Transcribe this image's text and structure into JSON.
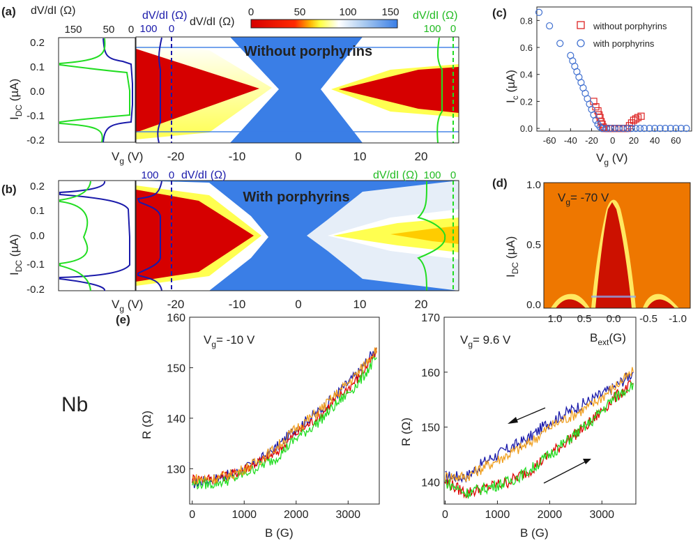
{
  "panels": {
    "a": "(a)",
    "b": "(b)",
    "c": "(c)",
    "d": "(d)",
    "e": "(e)"
  },
  "colors": {
    "red": "#d60000",
    "blue": "#3a7ee6",
    "white": "#f2f2f2",
    "yellow": "#ffff00",
    "trace_blue": "#1a1aaa",
    "trace_green": "#22dd22",
    "trace_red": "#dd0000",
    "trace_orange": "#f0a020",
    "open_red": "#dd2222",
    "open_blue": "#4070d0",
    "map_orange": "#ee7700",
    "map_red": "#cc1100"
  },
  "colorbar": {
    "label": "dV/dI (Ω)",
    "ticks": [
      "0",
      "50",
      "100",
      "150"
    ]
  },
  "panel_a": {
    "title": "Without porphyrins",
    "ylabel": "I",
    "ylabel_sub": "DC",
    "ylabel_unit": " (µA)",
    "yticks": [
      "0.2",
      "0.1",
      "0.0",
      "-0.1",
      "-0.2"
    ],
    "side_label": "dV/dI (Ω)",
    "side_ticks": [
      "150",
      "50",
      "0"
    ],
    "blue_label": "dV/dI (Ω)",
    "blue_ticks": [
      "100",
      "0"
    ],
    "green_label": "dV/dI (Ω)",
    "green_ticks": [
      "100",
      "0"
    ],
    "xlabel": "V",
    "xlabel_sub": "g",
    "xlabel_unit": " (V)",
    "xticks": [
      "-20",
      "-10",
      "0",
      "10",
      "20"
    ]
  },
  "panel_b": {
    "title": "With porphyrins",
    "ylabel": "I",
    "ylabel_sub": "DC",
    "ylabel_unit": " (µA)",
    "yticks": [
      "0.2",
      "0.1",
      "0.0",
      "-0.1",
      "-0.2"
    ],
    "blue_label": "dV/dI (Ω)",
    "blue_ticks": [
      "100",
      "0"
    ],
    "green_label": "dV/dI (Ω)",
    "green_ticks": [
      "100",
      "0"
    ],
    "xlabel": "V",
    "xlabel_sub": "g",
    "xlabel_unit": " (V)",
    "xticks": [
      "-20",
      "-10",
      "0",
      "10",
      "20"
    ]
  },
  "panel_d": {
    "annotation": "V",
    "annotation_sub": "g",
    "annotation_val": "= -70 V",
    "ylabel": "I",
    "ylabel_sub": "DC",
    "ylabel_unit": " (µA)",
    "yticks": [
      "1.0",
      "0.5",
      "0.0"
    ],
    "xlabel": "B",
    "xlabel_sub": "ext",
    "xlabel_unit": "(G)",
    "xticks": [
      "1.0",
      "0.5",
      "0.0",
      "-0.5",
      "-1.0"
    ]
  },
  "nb_label": "Nb",
  "chart_data": [
    {
      "type": "scatter",
      "panel": "c",
      "ylabel": "I",
      "ylabel_sub": "c",
      "ylabel_unit": " (µA)",
      "xlabel": "V",
      "xlabel_sub": "g",
      "xlabel_unit": " (V)",
      "xlim": [
        -72,
        75
      ],
      "ylim": [
        -0.02,
        0.9
      ],
      "xticks": [
        "-60",
        "-40",
        "-20",
        "0",
        "20",
        "40",
        "60"
      ],
      "xtick_values": [
        -60,
        -40,
        -20,
        0,
        20,
        40,
        60
      ],
      "yticks": [
        "0.0",
        "0.2",
        "0.4",
        "0.6",
        "0.8"
      ],
      "ytick_values": [
        0,
        0.2,
        0.4,
        0.6,
        0.8
      ],
      "series": [
        {
          "name": "without porphyrins",
          "marker": "square",
          "points": [
            [
              -18,
              0.2
            ],
            [
              -16,
              0.16
            ],
            [
              -14,
              0.13
            ],
            [
              -13,
              0.1
            ],
            [
              -12,
              0.08
            ],
            [
              -11,
              0.05
            ],
            [
              -10,
              0.03
            ],
            [
              -9,
              0.01
            ],
            [
              -8,
              0
            ],
            [
              -6,
              0
            ],
            [
              -4,
              0
            ],
            [
              -2,
              0
            ],
            [
              0,
              0
            ],
            [
              2,
              0
            ],
            [
              4,
              0
            ],
            [
              6,
              0
            ],
            [
              8,
              0
            ],
            [
              10,
              0
            ],
            [
              12,
              0
            ],
            [
              14,
              0
            ],
            [
              16,
              0.02
            ],
            [
              18,
              0.04
            ],
            [
              20,
              0.06
            ],
            [
              22,
              0.07
            ],
            [
              24,
              0.08
            ],
            [
              27,
              0.09
            ]
          ]
        },
        {
          "name": "with porphyrins",
          "marker": "circle",
          "points": [
            [
              -70,
              0.86
            ],
            [
              -60,
              0.76
            ],
            [
              -50,
              0.63
            ],
            [
              -40,
              0.54
            ],
            [
              -38,
              0.5
            ],
            [
              -36,
              0.46
            ],
            [
              -34,
              0.42
            ],
            [
              -32,
              0.38
            ],
            [
              -30,
              0.34
            ],
            [
              -28,
              0.3
            ],
            [
              -26,
              0.26
            ],
            [
              -24,
              0.22
            ],
            [
              -22,
              0.18
            ],
            [
              -20,
              0.14
            ],
            [
              -18,
              0.1
            ],
            [
              -16,
              0.06
            ],
            [
              -14,
              0.03
            ],
            [
              -12,
              0.01
            ],
            [
              -10,
              0
            ],
            [
              -6,
              0
            ],
            [
              -2,
              0
            ],
            [
              2,
              0
            ],
            [
              6,
              0
            ],
            [
              10,
              0
            ],
            [
              14,
              0
            ],
            [
              18,
              0
            ],
            [
              22,
              0
            ],
            [
              26,
              0
            ],
            [
              30,
              0
            ],
            [
              35,
              0
            ],
            [
              40,
              0
            ],
            [
              45,
              0
            ],
            [
              50,
              0
            ],
            [
              55,
              0
            ],
            [
              60,
              0
            ],
            [
              65,
              0
            ],
            [
              70,
              0
            ]
          ]
        }
      ]
    },
    {
      "type": "line",
      "panel": "e-left",
      "annotation": "V",
      "annotation_sub": "g",
      "annotation_val": "= -10 V",
      "ylabel": "R (Ω)",
      "xlabel": "B (G)",
      "xlim": [
        -50,
        3600
      ],
      "ylim": [
        123,
        160
      ],
      "xticks": [
        "0",
        "1000",
        "2000",
        "3000"
      ],
      "xtick_values": [
        0,
        1000,
        2000,
        3000
      ],
      "yticks": [
        "130",
        "140",
        "150",
        "160"
      ],
      "ytick_values": [
        130,
        140,
        150,
        160
      ],
      "series": [
        {
          "color": "trace_blue",
          "points": [
            [
              0,
              127
            ],
            [
              400,
              128
            ],
            [
              800,
              129
            ],
            [
              1200,
              131
            ],
            [
              1600,
              134
            ],
            [
              2000,
              138
            ],
            [
              2400,
              141
            ],
            [
              2800,
              145
            ],
            [
              3200,
              149
            ],
            [
              3550,
              154
            ]
          ]
        },
        {
          "color": "trace_red",
          "points": [
            [
              0,
              128
            ],
            [
              400,
              128
            ],
            [
              800,
              129
            ],
            [
              1200,
              131
            ],
            [
              1600,
              133
            ],
            [
              2000,
              137
            ],
            [
              2400,
              140
            ],
            [
              2800,
              144
            ],
            [
              3200,
              148
            ],
            [
              3550,
              153
            ]
          ]
        },
        {
          "color": "trace_green",
          "points": [
            [
              0,
              127
            ],
            [
              400,
              127
            ],
            [
              800,
              128
            ],
            [
              1200,
              130
            ],
            [
              1600,
              132
            ],
            [
              2000,
              136
            ],
            [
              2400,
              139
            ],
            [
              2800,
              143
            ],
            [
              3200,
              147
            ],
            [
              3550,
              152
            ]
          ]
        },
        {
          "color": "trace_orange",
          "points": [
            [
              0,
              128
            ],
            [
              400,
              128
            ],
            [
              800,
              129
            ],
            [
              1200,
              131
            ],
            [
              1600,
              134
            ],
            [
              2000,
              138
            ],
            [
              2400,
              141
            ],
            [
              2800,
              145
            ],
            [
              3200,
              149
            ],
            [
              3550,
              154
            ]
          ]
        }
      ]
    },
    {
      "type": "line",
      "panel": "e-right",
      "annotation": "V",
      "annotation_sub": "g",
      "annotation_val": "= 9.6 V",
      "ylabel": "R (Ω)",
      "xlabel": "B (G)",
      "xlim": [
        -20,
        3650
      ],
      "ylim": [
        136,
        170
      ],
      "xticks": [
        "0",
        "1000",
        "2000",
        "3000"
      ],
      "xtick_values": [
        0,
        1000,
        2000,
        3000
      ],
      "yticks": [
        "140",
        "150",
        "160",
        "170"
      ],
      "ytick_values": [
        140,
        150,
        160,
        170
      ],
      "series": [
        {
          "color": "trace_blue",
          "points": [
            [
              0,
              141
            ],
            [
              400,
              141
            ],
            [
              800,
              144
            ],
            [
              1200,
              146
            ],
            [
              1600,
              148
            ],
            [
              2000,
              151
            ],
            [
              2400,
              153
            ],
            [
              2800,
              155
            ],
            [
              3200,
              157
            ],
            [
              3600,
              160
            ]
          ]
        },
        {
          "color": "trace_orange",
          "points": [
            [
              0,
              141
            ],
            [
              400,
              141
            ],
            [
              800,
              143
            ],
            [
              1200,
              145
            ],
            [
              1600,
              147
            ],
            [
              2000,
              150
            ],
            [
              2400,
              152
            ],
            [
              2800,
              154
            ],
            [
              3200,
              157
            ],
            [
              3600,
              160
            ]
          ]
        },
        {
          "color": "trace_red",
          "points": [
            [
              0,
              140
            ],
            [
              400,
              138
            ],
            [
              800,
              139
            ],
            [
              1200,
              140
            ],
            [
              1600,
              142
            ],
            [
              2000,
              145
            ],
            [
              2400,
              148
            ],
            [
              2800,
              151
            ],
            [
              3200,
              155
            ],
            [
              3600,
              158
            ]
          ]
        },
        {
          "color": "trace_green",
          "points": [
            [
              0,
              140
            ],
            [
              400,
              138
            ],
            [
              800,
              139
            ],
            [
              1200,
              140
            ],
            [
              1600,
              142
            ],
            [
              2000,
              145
            ],
            [
              2400,
              148
            ],
            [
              2800,
              151
            ],
            [
              3200,
              155
            ],
            [
              3600,
              158
            ]
          ]
        }
      ]
    }
  ]
}
